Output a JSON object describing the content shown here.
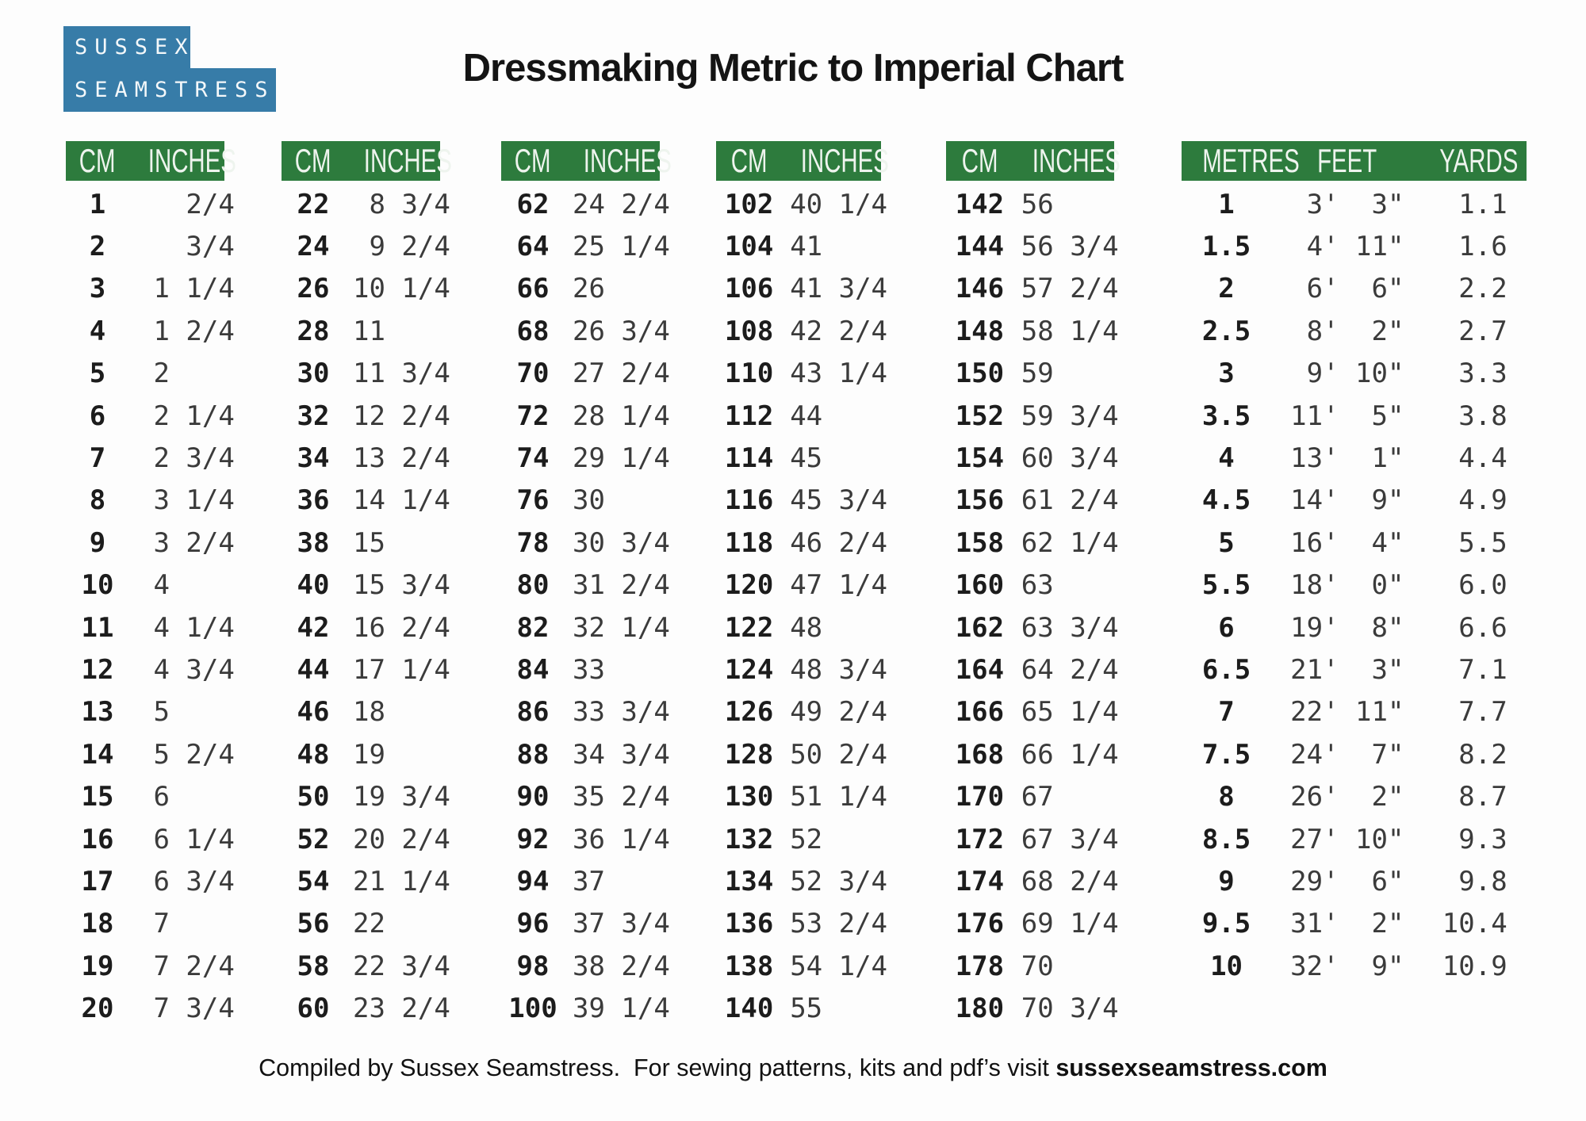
{
  "logo": {
    "line1": "SUSSEX",
    "line2": "SEAMSTRESS"
  },
  "title": "Dressmaking Metric to Imperial Chart",
  "colors": {
    "header_green": "#2d7b3d",
    "logo_blue": "#377ca8",
    "page_bg": "#fdfdfd",
    "text": "#161616"
  },
  "tables": [
    {
      "headers": [
        "CM",
        "INCHES"
      ],
      "rows": [
        [
          "1",
          "   2/4"
        ],
        [
          "2",
          "   3/4"
        ],
        [
          "3",
          " 1 1/4"
        ],
        [
          "4",
          " 1 2/4"
        ],
        [
          "5",
          " 2"
        ],
        [
          "6",
          " 2 1/4"
        ],
        [
          "7",
          " 2 3/4"
        ],
        [
          "8",
          " 3 1/4"
        ],
        [
          "9",
          " 3 2/4"
        ],
        [
          "10",
          " 4"
        ],
        [
          "11",
          " 4 1/4"
        ],
        [
          "12",
          " 4 3/4"
        ],
        [
          "13",
          " 5"
        ],
        [
          "14",
          " 5 2/4"
        ],
        [
          "15",
          " 6"
        ],
        [
          "16",
          " 6 1/4"
        ],
        [
          "17",
          " 6 3/4"
        ],
        [
          "18",
          " 7"
        ],
        [
          "19",
          " 7 2/4"
        ],
        [
          "20",
          " 7 3/4"
        ]
      ]
    },
    {
      "headers": [
        "CM",
        "INCHES"
      ],
      "rows": [
        [
          "22",
          " 8 3/4"
        ],
        [
          "24",
          " 9 2/4"
        ],
        [
          "26",
          "10 1/4"
        ],
        [
          "28",
          "11"
        ],
        [
          "30",
          "11 3/4"
        ],
        [
          "32",
          "12 2/4"
        ],
        [
          "34",
          "13 2/4"
        ],
        [
          "36",
          "14 1/4"
        ],
        [
          "38",
          "15"
        ],
        [
          "40",
          "15 3/4"
        ],
        [
          "42",
          "16 2/4"
        ],
        [
          "44",
          "17 1/4"
        ],
        [
          "46",
          "18"
        ],
        [
          "48",
          "19"
        ],
        [
          "50",
          "19 3/4"
        ],
        [
          "52",
          "20 2/4"
        ],
        [
          "54",
          "21 1/4"
        ],
        [
          "56",
          "22"
        ],
        [
          "58",
          "22 3/4"
        ],
        [
          "60",
          "23 2/4"
        ]
      ]
    },
    {
      "headers": [
        "CM",
        "INCHES"
      ],
      "rows": [
        [
          "62",
          "24 2/4"
        ],
        [
          "64",
          "25 1/4"
        ],
        [
          "66",
          "26"
        ],
        [
          "68",
          "26 3/4"
        ],
        [
          "70",
          "27 2/4"
        ],
        [
          "72",
          "28 1/4"
        ],
        [
          "74",
          "29 1/4"
        ],
        [
          "76",
          "30"
        ],
        [
          "78",
          "30 3/4"
        ],
        [
          "80",
          "31 2/4"
        ],
        [
          "82",
          "32 1/4"
        ],
        [
          "84",
          "33"
        ],
        [
          "86",
          "33 3/4"
        ],
        [
          "88",
          "34 3/4"
        ],
        [
          "90",
          "35 2/4"
        ],
        [
          "92",
          "36 1/4"
        ],
        [
          "94",
          "37"
        ],
        [
          "96",
          "37 3/4"
        ],
        [
          "98",
          "38 2/4"
        ],
        [
          "100",
          "39 1/4"
        ]
      ]
    },
    {
      "headers": [
        "CM",
        "INCHES"
      ],
      "rows": [
        [
          "102",
          "40 1/4"
        ],
        [
          "104",
          "41"
        ],
        [
          "106",
          "41 3/4"
        ],
        [
          "108",
          "42 2/4"
        ],
        [
          "110",
          "43 1/4"
        ],
        [
          "112",
          "44"
        ],
        [
          "114",
          "45"
        ],
        [
          "116",
          "45 3/4"
        ],
        [
          "118",
          "46 2/4"
        ],
        [
          "120",
          "47 1/4"
        ],
        [
          "122",
          "48"
        ],
        [
          "124",
          "48 3/4"
        ],
        [
          "126",
          "49 2/4"
        ],
        [
          "128",
          "50 2/4"
        ],
        [
          "130",
          "51 1/4"
        ],
        [
          "132",
          "52"
        ],
        [
          "134",
          "52 3/4"
        ],
        [
          "136",
          "53 2/4"
        ],
        [
          "138",
          "54 1/4"
        ],
        [
          "140",
          "55"
        ]
      ]
    },
    {
      "headers": [
        "CM",
        "INCHES"
      ],
      "rows": [
        [
          "142",
          "56"
        ],
        [
          "144",
          "56 3/4"
        ],
        [
          "146",
          "57 2/4"
        ],
        [
          "148",
          "58 1/4"
        ],
        [
          "150",
          "59"
        ],
        [
          "152",
          "59 3/4"
        ],
        [
          "154",
          "60 3/4"
        ],
        [
          "156",
          "61 2/4"
        ],
        [
          "158",
          "62 1/4"
        ],
        [
          "160",
          "63"
        ],
        [
          "162",
          "63 3/4"
        ],
        [
          "164",
          "64 2/4"
        ],
        [
          "166",
          "65 1/4"
        ],
        [
          "168",
          "66 1/4"
        ],
        [
          "170",
          "67"
        ],
        [
          "172",
          "67 3/4"
        ],
        [
          "174",
          "68 2/4"
        ],
        [
          "176",
          "69 1/4"
        ],
        [
          "178",
          "70"
        ],
        [
          "180",
          "70 3/4"
        ]
      ]
    }
  ],
  "metres_table": {
    "headers": [
      "METRES",
      "FEET",
      "YARDS"
    ],
    "rows": [
      [
        "1",
        " 3'  3\"",
        " 1.1"
      ],
      [
        "1.5",
        " 4' 11\"",
        " 1.6"
      ],
      [
        "2",
        " 6'  6\"",
        " 2.2"
      ],
      [
        "2.5",
        " 8'  2\"",
        " 2.7"
      ],
      [
        "3",
        " 9' 10\"",
        " 3.3"
      ],
      [
        "3.5",
        "11'  5\"",
        " 3.8"
      ],
      [
        "4",
        "13'  1\"",
        " 4.4"
      ],
      [
        "4.5",
        "14'  9\"",
        " 4.9"
      ],
      [
        "5",
        "16'  4\"",
        " 5.5"
      ],
      [
        "5.5",
        "18'  0\"",
        " 6.0"
      ],
      [
        "6",
        "19'  8\"",
        " 6.6"
      ],
      [
        "6.5",
        "21'  3\"",
        " 7.1"
      ],
      [
        "7",
        "22' 11\"",
        " 7.7"
      ],
      [
        "7.5",
        "24'  7\"",
        " 8.2"
      ],
      [
        "8",
        "26'  2\"",
        " 8.7"
      ],
      [
        "8.5",
        "27' 10\"",
        " 9.3"
      ],
      [
        "9",
        "29'  6\"",
        " 9.8"
      ],
      [
        "9.5",
        "31'  2\"",
        "10.4"
      ],
      [
        "10",
        "32'  9\"",
        "10.9"
      ]
    ]
  },
  "footer": {
    "text": "Compiled by Sussex Seamstress.  For sewing patterns, kits and pdf’s visit ",
    "link": "sussexseamstress.com"
  }
}
